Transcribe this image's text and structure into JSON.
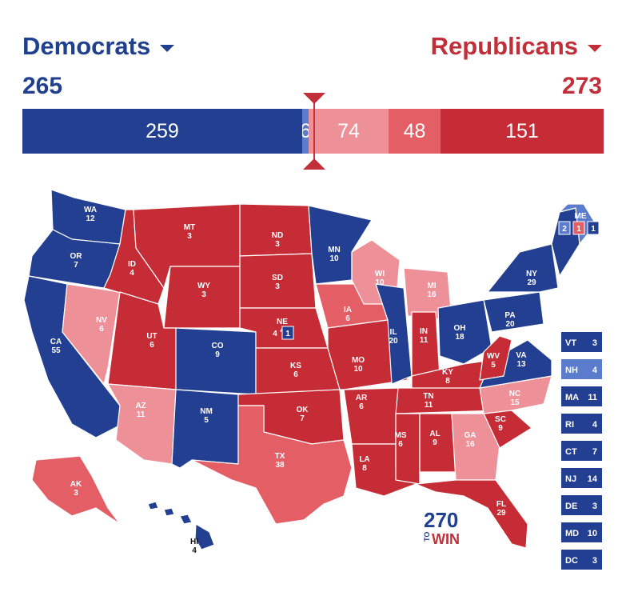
{
  "header": {
    "dem_label": "Democrats",
    "rep_label": "Republicans",
    "dem_total": "265",
    "rep_total": "273"
  },
  "colors": {
    "safe_dem": "#233f91",
    "lean_dem": "#5b7ccc",
    "tossup": "#ffffff",
    "lean_rep": "#ee9098",
    "likely_rep": "#e45e66",
    "safe_rep": "#c62c36"
  },
  "bar": [
    {
      "category": "safe-dem",
      "value": 259,
      "label": "259"
    },
    {
      "category": "lean-dem",
      "value": 6,
      "label": "6"
    },
    {
      "category": "lean-rep",
      "value": 74,
      "label": "74"
    },
    {
      "category": "likely-rep",
      "value": 48,
      "label": "48"
    },
    {
      "category": "safe-rep",
      "value": 151,
      "label": "151"
    }
  ],
  "threshold_votes": 270,
  "states": [
    {
      "id": "WA",
      "label": "WA",
      "votes": "12",
      "cat": "safe-dem"
    },
    {
      "id": "OR",
      "label": "OR",
      "votes": "7",
      "cat": "safe-dem"
    },
    {
      "id": "CA",
      "label": "CA",
      "votes": "55",
      "cat": "safe-dem"
    },
    {
      "id": "NV",
      "label": "NV",
      "votes": "6",
      "cat": "lean-rep"
    },
    {
      "id": "ID",
      "label": "ID",
      "votes": "4",
      "cat": "safe-rep"
    },
    {
      "id": "MT",
      "label": "MT",
      "votes": "3",
      "cat": "safe-rep"
    },
    {
      "id": "WY",
      "label": "WY",
      "votes": "3",
      "cat": "safe-rep"
    },
    {
      "id": "UT",
      "label": "UT",
      "votes": "6",
      "cat": "safe-rep"
    },
    {
      "id": "AZ",
      "label": "AZ",
      "votes": "11",
      "cat": "lean-rep"
    },
    {
      "id": "CO",
      "label": "CO",
      "votes": "9",
      "cat": "safe-dem"
    },
    {
      "id": "NM",
      "label": "NM",
      "votes": "5",
      "cat": "safe-dem"
    },
    {
      "id": "ND",
      "label": "ND",
      "votes": "3",
      "cat": "safe-rep"
    },
    {
      "id": "SD",
      "label": "SD",
      "votes": "3",
      "cat": "safe-rep"
    },
    {
      "id": "NE",
      "label": "NE",
      "votes": "4",
      "cat": "safe-rep"
    },
    {
      "id": "KS",
      "label": "KS",
      "votes": "6",
      "cat": "safe-rep"
    },
    {
      "id": "OK",
      "label": "OK",
      "votes": "7",
      "cat": "safe-rep"
    },
    {
      "id": "TX",
      "label": "TX",
      "votes": "38",
      "cat": "likely-rep"
    },
    {
      "id": "MN",
      "label": "MN",
      "votes": "10",
      "cat": "safe-dem"
    },
    {
      "id": "IA",
      "label": "IA",
      "votes": "6",
      "cat": "likely-rep"
    },
    {
      "id": "MO",
      "label": "MO",
      "votes": "10",
      "cat": "safe-rep"
    },
    {
      "id": "AR",
      "label": "AR",
      "votes": "6",
      "cat": "safe-rep"
    },
    {
      "id": "LA",
      "label": "LA",
      "votes": "8",
      "cat": "safe-rep"
    },
    {
      "id": "WI",
      "label": "WI",
      "votes": "10",
      "cat": "lean-rep"
    },
    {
      "id": "IL",
      "label": "IL",
      "votes": "20",
      "cat": "safe-dem"
    },
    {
      "id": "MI",
      "label": "MI",
      "votes": "16",
      "cat": "lean-rep"
    },
    {
      "id": "IN",
      "label": "IN",
      "votes": "11",
      "cat": "safe-rep"
    },
    {
      "id": "OH",
      "label": "OH",
      "votes": "18",
      "cat": "safe-dem"
    },
    {
      "id": "KY",
      "label": "KY",
      "votes": "8",
      "cat": "safe-rep"
    },
    {
      "id": "TN",
      "label": "TN",
      "votes": "11",
      "cat": "safe-rep"
    },
    {
      "id": "MS",
      "label": "MS",
      "votes": "6",
      "cat": "safe-rep"
    },
    {
      "id": "AL",
      "label": "AL",
      "votes": "9",
      "cat": "safe-rep"
    },
    {
      "id": "GA",
      "label": "GA",
      "votes": "16",
      "cat": "lean-rep"
    },
    {
      "id": "FL",
      "label": "FL",
      "votes": "29",
      "cat": "safe-rep"
    },
    {
      "id": "SC",
      "label": "SC",
      "votes": "9",
      "cat": "safe-rep"
    },
    {
      "id": "NC",
      "label": "NC",
      "votes": "15",
      "cat": "lean-rep"
    },
    {
      "id": "VA",
      "label": "VA",
      "votes": "13",
      "cat": "safe-dem"
    },
    {
      "id": "WV",
      "label": "WV",
      "votes": "5",
      "cat": "safe-rep"
    },
    {
      "id": "PA",
      "label": "PA",
      "votes": "20",
      "cat": "safe-dem"
    },
    {
      "id": "NY",
      "label": "NY",
      "votes": "29",
      "cat": "safe-dem"
    },
    {
      "id": "ME",
      "label": "ME",
      "votes": "",
      "cat": "lean-dem"
    },
    {
      "id": "AK",
      "label": "AK",
      "votes": "3",
      "cat": "likely-rep"
    },
    {
      "id": "HI",
      "label": "HI",
      "votes": "4",
      "cat": "safe-dem"
    }
  ],
  "ne_districts": [
    "4",
    "1"
  ],
  "me_districts": [
    "2",
    "1",
    "1"
  ],
  "small_states": [
    {
      "label": "VT",
      "votes": "3",
      "cat": "safe-dem"
    },
    {
      "label": "NH",
      "votes": "4",
      "cat": "lean-dem"
    },
    {
      "label": "MA",
      "votes": "11",
      "cat": "safe-dem"
    },
    {
      "label": "RI",
      "votes": "4",
      "cat": "safe-dem"
    },
    {
      "label": "CT",
      "votes": "7",
      "cat": "safe-dem"
    },
    {
      "label": "NJ",
      "votes": "14",
      "cat": "safe-dem"
    },
    {
      "label": "DE",
      "votes": "3",
      "cat": "safe-dem"
    },
    {
      "label": "MD",
      "votes": "10",
      "cat": "safe-dem"
    },
    {
      "label": "DC",
      "votes": "3",
      "cat": "safe-dem"
    }
  ],
  "logo": {
    "number": "270",
    "to": "TO",
    "win": "WIN"
  }
}
